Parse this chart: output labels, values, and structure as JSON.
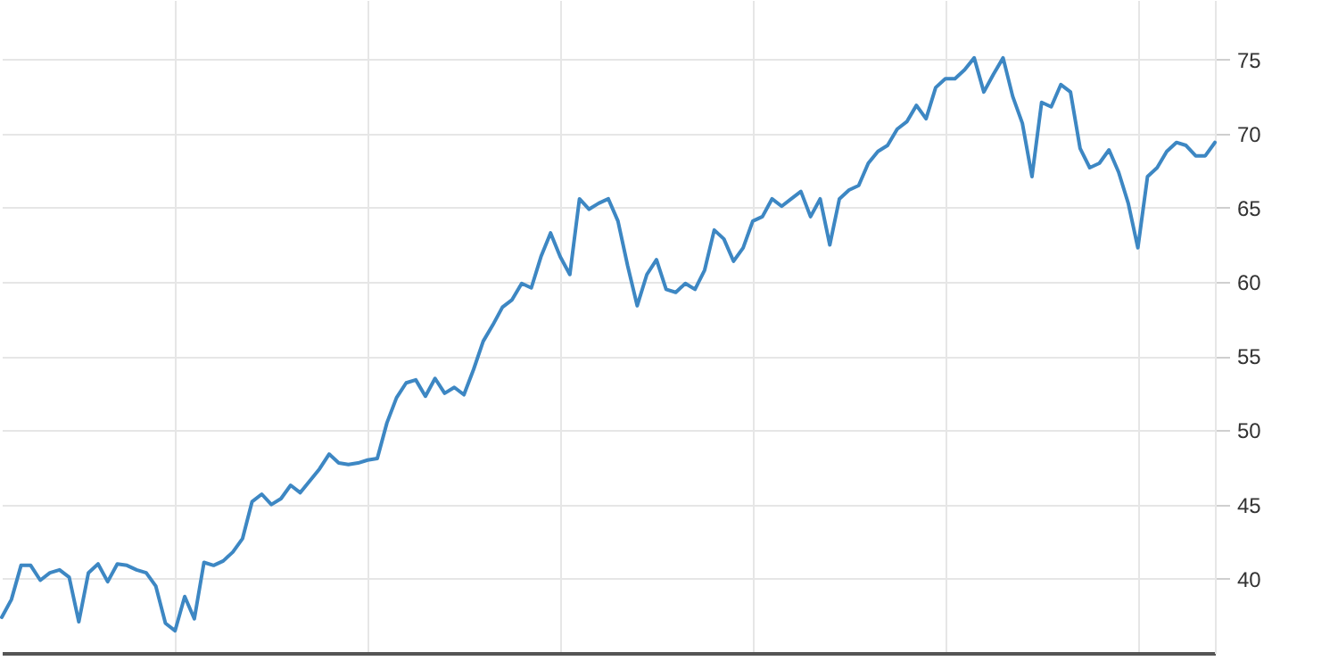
{
  "chart_data": {
    "type": "line",
    "color": "#3d87c3",
    "ylim": [
      35,
      79
    ],
    "yticks": [
      40,
      45,
      50,
      55,
      60,
      65,
      70,
      75
    ],
    "grid": true,
    "tick_labels": "y",
    "categories": [
      null,
      null,
      null,
      null,
      null,
      null,
      null,
      null,
      null,
      null,
      null,
      null,
      null,
      null,
      null,
      null,
      null,
      null,
      null,
      null,
      null,
      null,
      null,
      null,
      null,
      null,
      null,
      null,
      null,
      null,
      null,
      null,
      null,
      null,
      null,
      null,
      null,
      null,
      null,
      null,
      null,
      null,
      null,
      null,
      null,
      null,
      null,
      null,
      null,
      null,
      null,
      null,
      null,
      null,
      null,
      null,
      null,
      null,
      null,
      null,
      null,
      null,
      null,
      null,
      null,
      null,
      null,
      null,
      null,
      null,
      null,
      null,
      null,
      null,
      null,
      null,
      null,
      null,
      null,
      null,
      null,
      null,
      null,
      null,
      null,
      null,
      null,
      null,
      null,
      null,
      null,
      null,
      null,
      null,
      null,
      null,
      null,
      null,
      null,
      null,
      null,
      null,
      null,
      null,
      null,
      null,
      null,
      null,
      null,
      null,
      null,
      null,
      null,
      null,
      null,
      null,
      null,
      null,
      null,
      null,
      null,
      null,
      null,
      null,
      null,
      null,
      null
    ],
    "values": [
      37.4,
      38.6,
      40.9,
      40.9,
      39.9,
      40.4,
      40.6,
      40.1,
      37.1,
      40.4,
      41.0,
      39.8,
      41.0,
      40.9,
      40.6,
      40.4,
      39.5,
      37.0,
      36.5,
      38.8,
      37.3,
      41.1,
      40.9,
      41.2,
      41.8,
      42.7,
      45.2,
      45.7,
      45.0,
      45.4,
      46.3,
      45.8,
      46.6,
      47.4,
      48.4,
      47.8,
      47.7,
      47.8,
      48.0,
      48.1,
      50.5,
      52.2,
      53.2,
      53.4,
      52.3,
      53.5,
      52.5,
      52.9,
      52.4,
      54.1,
      56.0,
      57.1,
      58.3,
      58.8,
      59.9,
      59.6,
      61.7,
      63.3,
      61.7,
      60.5,
      65.6,
      64.9,
      65.3,
      65.6,
      64.1,
      61.1,
      58.4,
      60.5,
      61.5,
      59.5,
      59.3,
      59.9,
      59.5,
      60.8,
      63.5,
      62.9,
      61.4,
      62.3,
      64.1,
      64.4,
      65.6,
      65.1,
      65.6,
      66.1,
      64.4,
      65.6,
      62.5,
      65.6,
      66.2,
      66.5,
      68.0,
      68.8,
      69.2,
      70.3,
      70.8,
      71.9,
      71.0,
      73.1,
      73.7,
      73.7,
      74.3,
      75.1,
      72.8,
      74.0,
      75.1,
      72.5,
      70.7,
      67.1,
      72.1,
      71.8,
      73.3,
      72.8,
      69.0,
      67.7,
      68.0,
      68.9,
      67.4,
      65.3,
      62.3,
      67.1,
      67.7,
      68.8,
      69.4,
      69.2,
      68.5,
      68.5,
      69.4
    ]
  }
}
